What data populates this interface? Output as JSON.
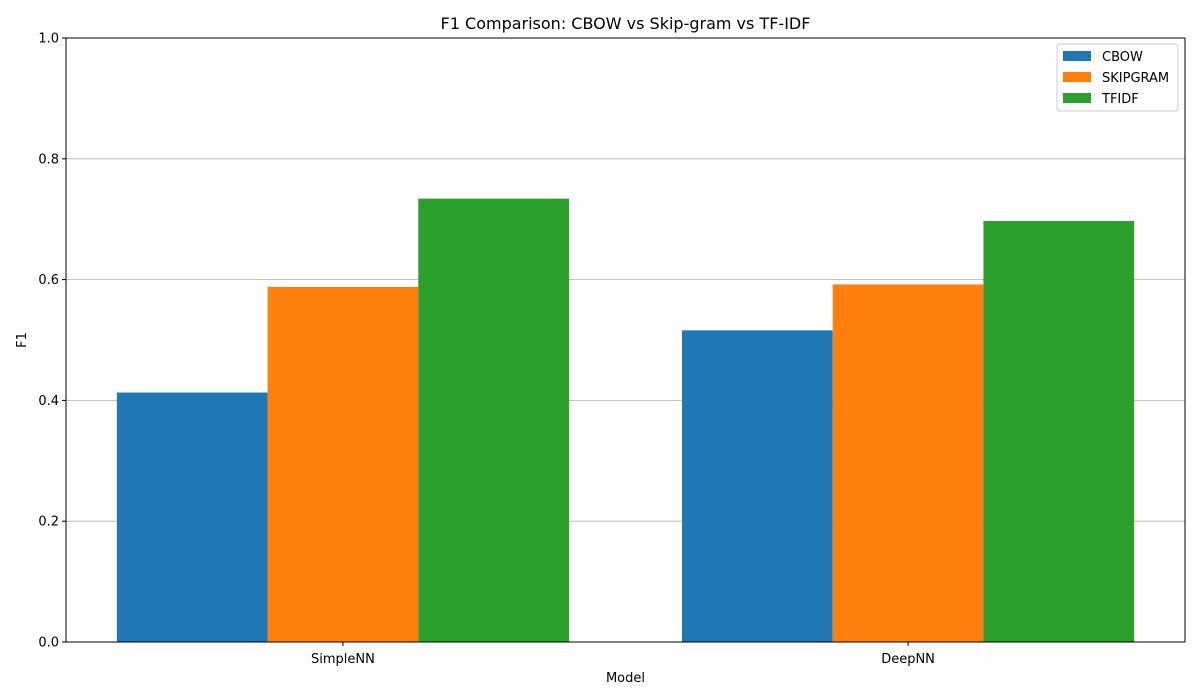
{
  "chart_data": {
    "type": "bar",
    "title": "F1 Comparison: CBOW vs Skip-gram vs TF-IDF",
    "xlabel": "Model",
    "ylabel": "F1",
    "categories": [
      "SimpleNN",
      "DeepNN"
    ],
    "series": [
      {
        "name": "CBOW",
        "color": "#1f77b4",
        "values": [
          0.413,
          0.516
        ]
      },
      {
        "name": "SKIPGRAM",
        "color": "#ff7f0e",
        "values": [
          0.588,
          0.592
        ]
      },
      {
        "name": "TFIDF",
        "color": "#2ca02c",
        "values": [
          0.734,
          0.697
        ]
      }
    ],
    "ylim": [
      0,
      1
    ],
    "yticks": [
      "0.0",
      "0.2",
      "0.4",
      "0.6",
      "0.8",
      "1.0"
    ],
    "grid": "y",
    "legend_position": "top-right"
  }
}
